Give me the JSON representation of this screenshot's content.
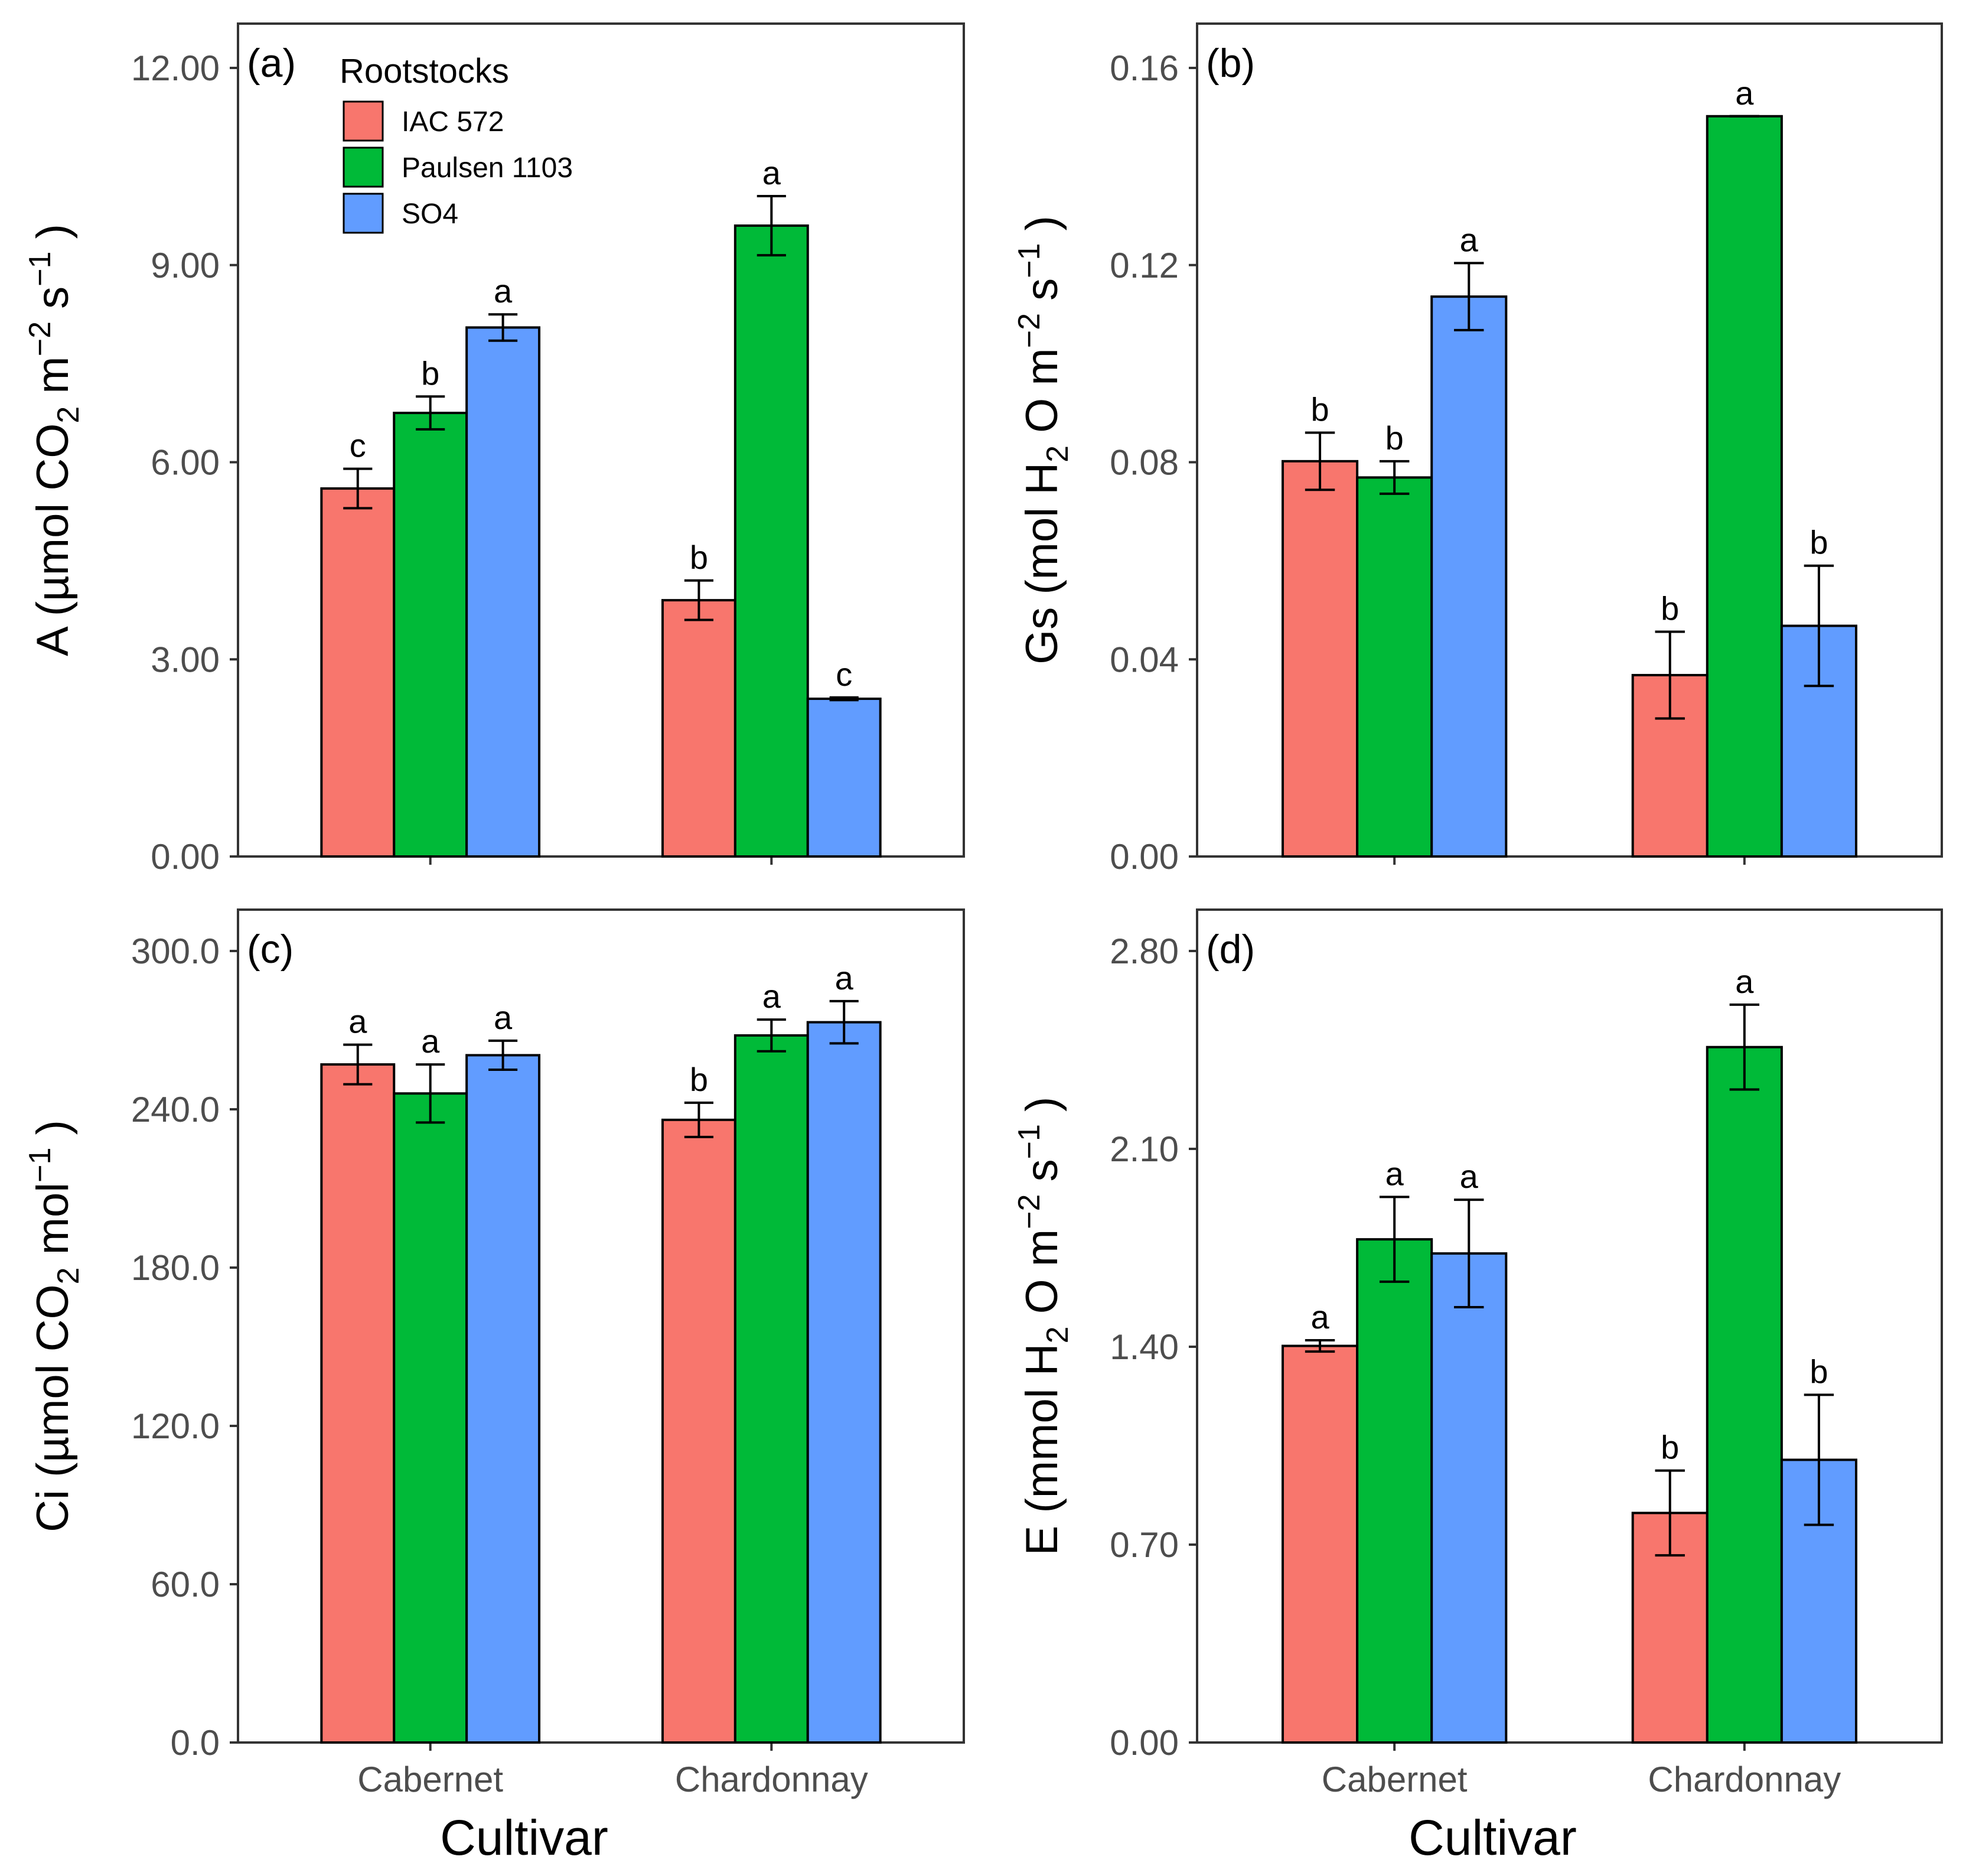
{
  "chart_data": [
    {
      "type": "bar",
      "panel_label": "(a)",
      "ylabel": "A (µmol CO2 m−2 s−1 )",
      "ylabel_parts": {
        "pre": "A (µmol CO",
        "sub": "2",
        "mid": " m",
        "sup1": "−2",
        "mid2": " s",
        "sup2": "−1",
        "post": " )"
      },
      "xlabel": "",
      "categories": [
        "Cabernet",
        "Chardonnay"
      ],
      "ylim": [
        0,
        12
      ],
      "yticks": [
        0,
        3,
        6,
        9,
        12
      ],
      "ytick_labels": [
        "0.00",
        "3.00",
        "6.00",
        "9.00",
        "12.00"
      ],
      "series": [
        {
          "name": "IAC 572",
          "values": [
            5.6,
            3.9
          ],
          "errors": [
            0.3,
            0.3
          ],
          "letters": [
            "c",
            "b"
          ]
        },
        {
          "name": "Paulsen 1103",
          "values": [
            6.75,
            9.6
          ],
          "errors": [
            0.25,
            0.45
          ],
          "letters": [
            "b",
            "a"
          ]
        },
        {
          "name": "SO4",
          "values": [
            8.05,
            2.4
          ],
          "errors": [
            0.2,
            0.02
          ],
          "letters": [
            "a",
            "c"
          ]
        }
      ]
    },
    {
      "type": "bar",
      "panel_label": "(b)",
      "ylabel": "Gs (mol H2 O m−2 s−1 )",
      "ylabel_parts": {
        "pre": "Gs (mol H",
        "sub": "2",
        "mid": " O m",
        "sup1": "−2",
        "mid2": " s",
        "sup2": "−1",
        "post": " )"
      },
      "xlabel": "",
      "categories": [
        "Cabernet",
        "Chardonnay"
      ],
      "ylim": [
        0,
        0.16
      ],
      "yticks": [
        0,
        0.04,
        0.08,
        0.12,
        0.16
      ],
      "ytick_labels": [
        "0.00",
        "0.04",
        "0.08",
        "0.12",
        "0.16"
      ],
      "series": [
        {
          "name": "IAC 572",
          "values": [
            0.0802,
            0.0368
          ],
          "errors": [
            0.0058,
            0.0088
          ],
          "letters": [
            "b",
            "b"
          ]
        },
        {
          "name": "Paulsen 1103",
          "values": [
            0.0769,
            0.1502
          ],
          "errors": [
            0.0033,
            0.0
          ],
          "letters": [
            "b",
            "a"
          ]
        },
        {
          "name": "SO4",
          "values": [
            0.1136,
            0.0468
          ],
          "errors": [
            0.0068,
            0.0122
          ],
          "letters": [
            "a",
            "b"
          ]
        }
      ]
    },
    {
      "type": "bar",
      "panel_label": "(c)",
      "ylabel": "Ci (µmol CO2 mol−1 )",
      "ylabel_parts": {
        "pre": "Ci (µmol CO",
        "sub": "2",
        "mid": " mol",
        "sup1": "−1",
        "mid2": "",
        "sup2": "",
        "post": " )"
      },
      "xlabel": "Cultivar",
      "categories": [
        "Cabernet",
        "Chardonnay"
      ],
      "ylim": [
        0,
        300
      ],
      "yticks": [
        0,
        60,
        120,
        180,
        240,
        300
      ],
      "ytick_labels": [
        "0.0",
        "60.0",
        "120.0",
        "180.0",
        "240.0",
        "300.0"
      ],
      "series": [
        {
          "name": "IAC 572",
          "values": [
            257,
            236
          ],
          "errors": [
            7.5,
            6.5
          ],
          "letters": [
            "a",
            "b"
          ]
        },
        {
          "name": "Paulsen 1103",
          "values": [
            246,
            268
          ],
          "errors": [
            11,
            6
          ],
          "letters": [
            "a",
            "a"
          ]
        },
        {
          "name": "SO4",
          "values": [
            260.5,
            273
          ],
          "errors": [
            5.5,
            8
          ],
          "letters": [
            "a",
            "a"
          ]
        }
      ]
    },
    {
      "type": "bar",
      "panel_label": "(d)",
      "ylabel": "E (mmol H2 O m−2 s−1 )",
      "ylabel_parts": {
        "pre": "E (mmol H",
        "sub": "2",
        "mid": " O m",
        "sup1": "−2",
        "mid2": " s",
        "sup2": "−1",
        "post": " )"
      },
      "xlabel": "Cultivar",
      "categories": [
        "Cabernet",
        "Chardonnay"
      ],
      "ylim": [
        0,
        2.8
      ],
      "yticks": [
        0,
        0.7,
        1.4,
        2.1,
        2.8
      ],
      "ytick_labels": [
        "0.00",
        "0.70",
        "1.40",
        "2.10",
        "2.80"
      ],
      "series": [
        {
          "name": "IAC 572",
          "values": [
            1.403,
            0.812
          ],
          "errors": [
            0.02,
            0.15
          ],
          "letters": [
            "a",
            "b"
          ]
        },
        {
          "name": "Paulsen 1103",
          "values": [
            1.78,
            2.46
          ],
          "errors": [
            0.15,
            0.15
          ],
          "letters": [
            "a",
            "a"
          ]
        },
        {
          "name": "SO4",
          "values": [
            1.73,
            1.0
          ],
          "errors": [
            0.19,
            0.23
          ],
          "letters": [
            "a",
            "b"
          ]
        }
      ]
    }
  ],
  "legend": {
    "title": "Rootstocks",
    "items": [
      "IAC 572",
      "Paulsen 1103",
      "SO4"
    ],
    "position": "top-left inside panel (a)"
  },
  "colors": {
    "IAC 572": "#f8766d",
    "Paulsen 1103": "#00ba38",
    "SO4": "#619cff",
    "axis": "#333333",
    "tick_text": "#4d4d4d"
  }
}
